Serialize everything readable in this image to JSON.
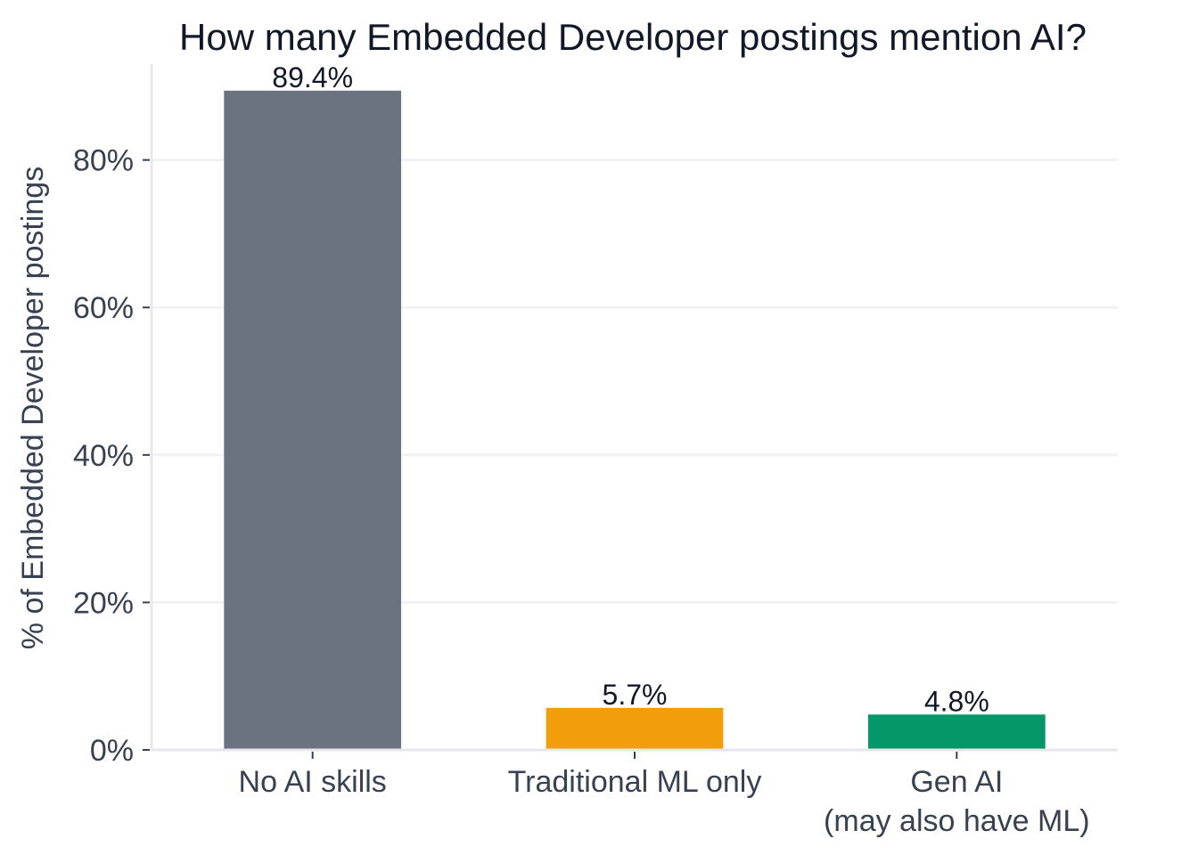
{
  "chart_data": {
    "type": "bar",
    "title": "How many Embedded Developer postings mention AI?",
    "ylabel": "% of Embedded Developer postings",
    "xlabel": "",
    "categories": [
      [
        "No AI skills"
      ],
      [
        "Traditional ML only"
      ],
      [
        "Gen AI",
        "(may also have ML)"
      ]
    ],
    "values": [
      89.4,
      5.7,
      4.8
    ],
    "value_labels": [
      "89.4%",
      "5.7%",
      "4.8%"
    ],
    "colors": [
      "#6b7280",
      "#f29e0c",
      "#059669"
    ],
    "ylim": [
      0,
      93
    ],
    "yticks": [
      0,
      20,
      40,
      60,
      80
    ],
    "ytick_labels": [
      "0%",
      "20%",
      "40%",
      "60%",
      "80%"
    ],
    "grid": "horizontal",
    "legend": "none"
  }
}
